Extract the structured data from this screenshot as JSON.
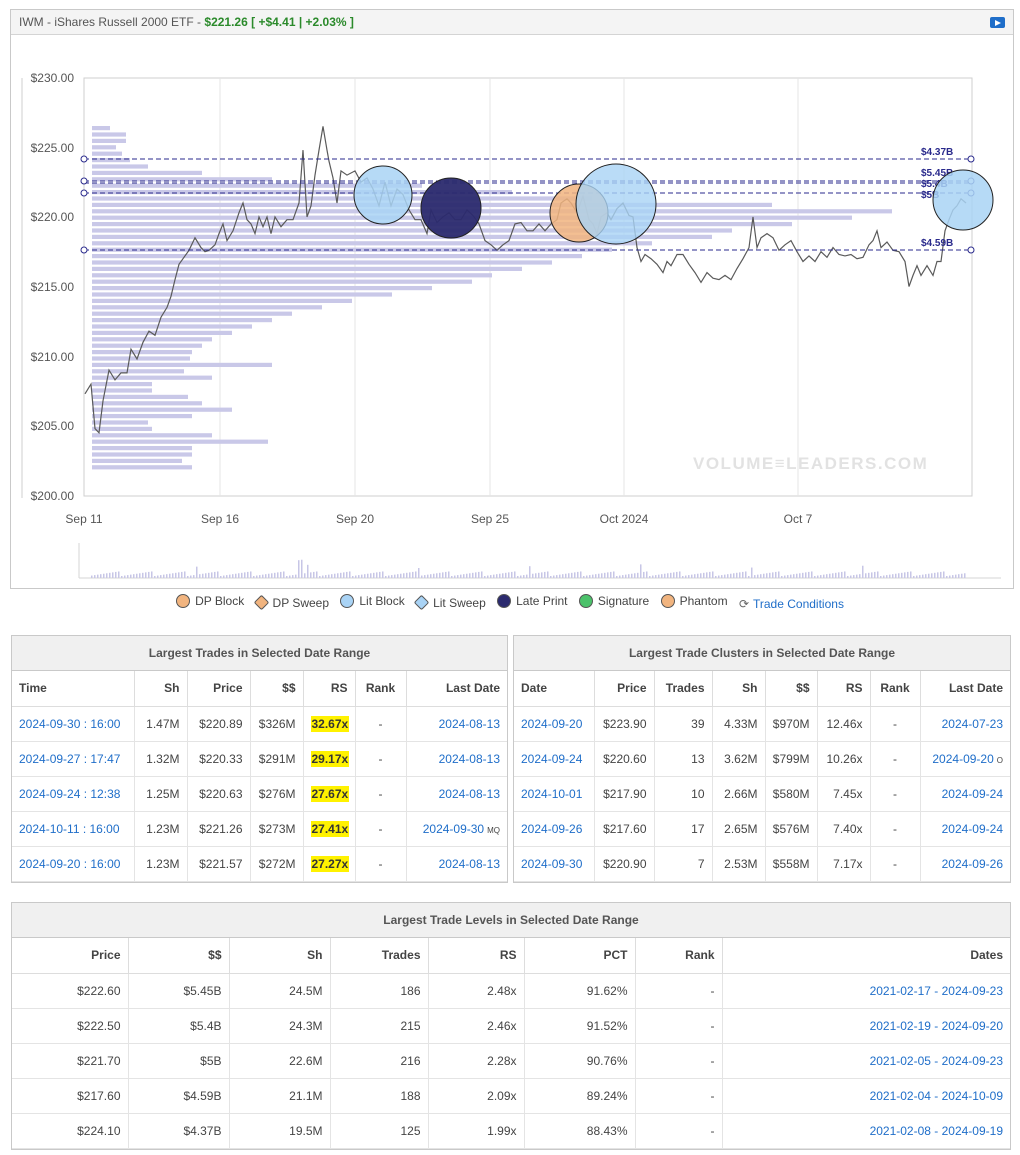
{
  "header": {
    "title_prefix": "IWM - iShares Russell 2000 ETF - ",
    "price": "$221.26",
    "change": "[ +$4.41 | +2.03% ]"
  },
  "chart": {
    "y_ticks": [
      "$230.00",
      "$225.00",
      "$220.00",
      "$215.00",
      "$210.00",
      "$205.00",
      "$200.00"
    ],
    "x_ticks": [
      "Sep 11",
      "Sep 16",
      "Sep 20",
      "Sep 25",
      "Oct 2024",
      "Oct 7"
    ],
    "watermark": "VOLUME≡LEADERS.COM",
    "level_labels": [
      "$4.37B",
      "$5.45B",
      "$5.4B",
      "$5B",
      "$4.59B"
    ],
    "colors": {
      "price_line": "#555555",
      "volume_profile": "#c9c8e8",
      "level_line": "#2a2a8c",
      "lit_block": "#a9d3f5",
      "dp_block": "#f1b47f",
      "late_print": "#2b2a6e"
    }
  },
  "legend": {
    "items": [
      "DP Block",
      "DP Sweep",
      "Lit Block",
      "Lit Sweep",
      "Late Print",
      "Signature",
      "Phantom"
    ],
    "link": "Trade Conditions"
  },
  "largest_trades": {
    "title": "Largest Trades in Selected Date Range",
    "columns": [
      "Time",
      "Sh",
      "Price",
      "$$",
      "RS",
      "Rank",
      "Last Date"
    ],
    "rows": [
      [
        "2024-09-30 : 16:00",
        "1.47M",
        "$220.89",
        "$326M",
        "32.67x",
        "-",
        "2024-08-13",
        ""
      ],
      [
        "2024-09-27 : 17:47",
        "1.32M",
        "$220.33",
        "$291M",
        "29.17x",
        "-",
        "2024-08-13",
        ""
      ],
      [
        "2024-09-24 : 12:38",
        "1.25M",
        "$220.63",
        "$276M",
        "27.67x",
        "-",
        "2024-08-13",
        ""
      ],
      [
        "2024-10-11 : 16:00",
        "1.23M",
        "$221.26",
        "$273M",
        "27.41x",
        "-",
        "2024-09-30",
        "MQ"
      ],
      [
        "2024-09-20 : 16:00",
        "1.23M",
        "$221.57",
        "$272M",
        "27.27x",
        "-",
        "2024-08-13",
        ""
      ]
    ]
  },
  "largest_clusters": {
    "title": "Largest Trade Clusters in Selected Date Range",
    "columns": [
      "Date",
      "Price",
      "Trades",
      "Sh",
      "$$",
      "RS",
      "Rank",
      "Last Date"
    ],
    "rows": [
      [
        "2024-09-20",
        "$223.90",
        "39",
        "4.33M",
        "$970M",
        "12.46x",
        "-",
        "2024-07-23",
        ""
      ],
      [
        "2024-09-24",
        "$220.60",
        "13",
        "3.62M",
        "$799M",
        "10.26x",
        "-",
        "2024-09-20",
        "O"
      ],
      [
        "2024-10-01",
        "$217.90",
        "10",
        "2.66M",
        "$580M",
        "7.45x",
        "-",
        "2024-09-24",
        ""
      ],
      [
        "2024-09-26",
        "$217.60",
        "17",
        "2.65M",
        "$576M",
        "7.40x",
        "-",
        "2024-09-24",
        ""
      ],
      [
        "2024-09-30",
        "$220.90",
        "7",
        "2.53M",
        "$558M",
        "7.17x",
        "-",
        "2024-09-26",
        ""
      ]
    ]
  },
  "largest_levels": {
    "title": "Largest Trade Levels in Selected Date Range",
    "columns": [
      "Price",
      "$$",
      "Sh",
      "Trades",
      "RS",
      "PCT",
      "Rank",
      "Dates"
    ],
    "rows": [
      [
        "$222.60",
        "$5.45B",
        "24.5M",
        "186",
        "2.48x",
        "91.62%",
        "-",
        "2021-02-17 - 2024-09-23"
      ],
      [
        "$222.50",
        "$5.4B",
        "24.3M",
        "215",
        "2.46x",
        "91.52%",
        "-",
        "2021-02-19 - 2024-09-20"
      ],
      [
        "$221.70",
        "$5B",
        "22.6M",
        "216",
        "2.28x",
        "90.76%",
        "-",
        "2021-02-05 - 2024-09-23"
      ],
      [
        "$217.60",
        "$4.59B",
        "21.1M",
        "188",
        "2.09x",
        "89.24%",
        "-",
        "2021-02-04 - 2024-10-09"
      ],
      [
        "$224.10",
        "$4.37B",
        "19.5M",
        "125",
        "1.99x",
        "88.43%",
        "-",
        "2021-02-08 - 2024-09-19"
      ]
    ]
  }
}
